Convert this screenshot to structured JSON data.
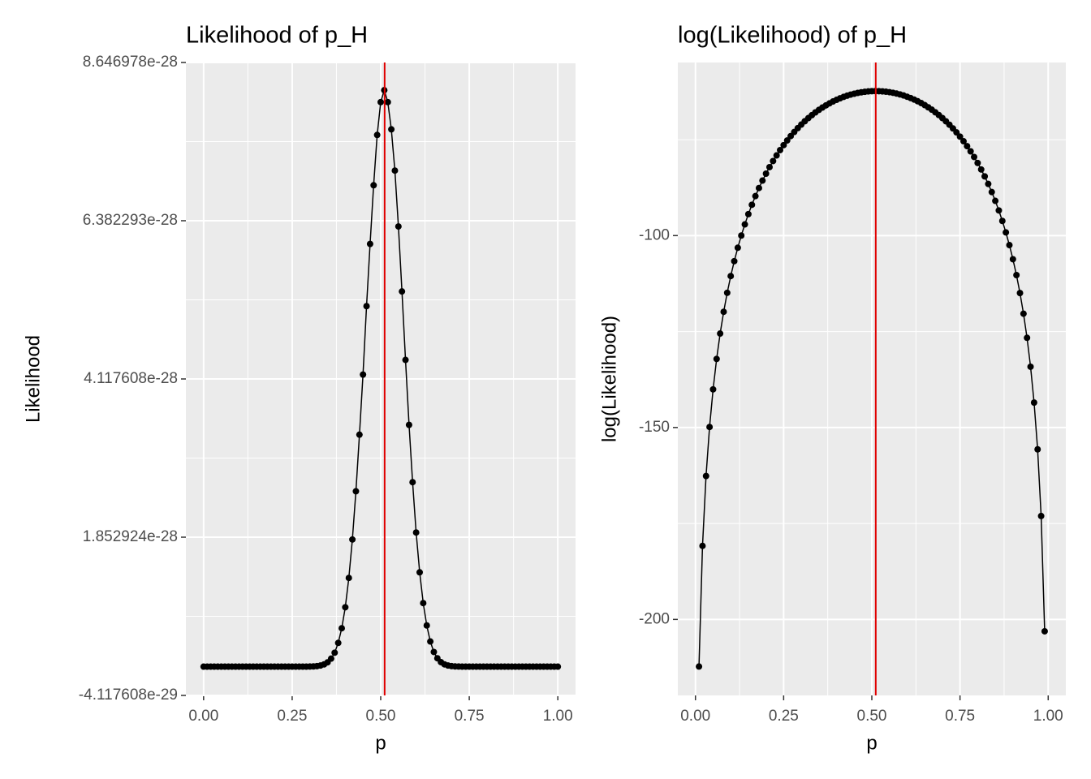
{
  "chart_data": [
    {
      "type": "line",
      "title": "Likelihood of p_H",
      "x_label": "p",
      "y_label": "Likelihood",
      "x": [
        0,
        0.01,
        0.02,
        0.03,
        0.04,
        0.05,
        0.06,
        0.07,
        0.08,
        0.09,
        0.1,
        0.11,
        0.12,
        0.13,
        0.14,
        0.15,
        0.16,
        0.17,
        0.18,
        0.19,
        0.2,
        0.21,
        0.22,
        0.23,
        0.24,
        0.25,
        0.26,
        0.27,
        0.28,
        0.29,
        0.3,
        0.31,
        0.32,
        0.33,
        0.34,
        0.35,
        0.36,
        0.37,
        0.38,
        0.39,
        0.4,
        0.41,
        0.42,
        0.43,
        0.44,
        0.45,
        0.46,
        0.47,
        0.48,
        0.49,
        0.5,
        0.51,
        0.52,
        0.53,
        0.54,
        0.55,
        0.56,
        0.57,
        0.58,
        0.59,
        0.6,
        0.61,
        0.62,
        0.63,
        0.64,
        0.65,
        0.66,
        0.67,
        0.68,
        0.69,
        0.7,
        0.71,
        0.72,
        0.73,
        0.74,
        0.75,
        0.76,
        0.77,
        0.78,
        0.79,
        0.8,
        0.81,
        0.82,
        0.83,
        0.84,
        0.85,
        0.86,
        0.87,
        0.88,
        0.89,
        0.9,
        0.91,
        0.92,
        0.93,
        0.94,
        0.95,
        0.96,
        0.97,
        0.98,
        0.99,
        1
      ],
      "values": [
        0,
        6.5e-93,
        2.9e-79,
        2.3e-71,
        8.1e-66,
        1.5e-61,
        4.1e-58,
        3.1e-55,
        8.9e-53,
        1.3e-50,
        9.8e-49,
        4.8e-47,
        1.6e-45,
        3.8e-44,
        6.9e-43,
        1e-41,
        1.1e-40,
        1.1e-39,
        8.9e-39,
        6.2e-38,
        3.8e-37,
        2.1e-36,
        1e-35,
        4.4e-35,
        1.8e-34,
        6.4e-34,
        2.2e-33,
        6.7e-33,
        1.9e-32,
        5.3e-32,
        1.35e-31,
        3.3e-31,
        7.3e-31,
        1.6e-30,
        3.2e-30,
        6.2e-30,
        1.15e-29,
        2e-29,
        3.4e-29,
        5.5e-29,
        8.5e-29,
        1.27e-28,
        1.82e-28,
        2.51e-28,
        3.32e-28,
        4.18e-28,
        5.16e-28,
        6.05e-28,
        6.89e-28,
        7.61e-28,
        8.08e-28,
        8.25e-28,
        8.08e-28,
        7.69e-28,
        7.1e-28,
        6.3e-28,
        5.37e-28,
        4.39e-28,
        3.46e-28,
        2.64e-28,
        1.92e-28,
        1.35e-28,
        9.1e-29,
        5.9e-29,
        3.6e-29,
        2.1e-29,
        1.2e-29,
        6.5e-30,
        3.3e-30,
        1.6e-30,
        7.4e-31,
        3.2e-31,
        1.3e-31,
        4.9e-32,
        1.7e-32,
        5.8e-33,
        1.8e-33,
        4.9e-34,
        1.3e-34,
        2.9e-35,
        6.2e-36,
        1.1e-36,
        1.9e-37,
        2.6e-38,
        3.2e-39,
        3.2e-40,
        2.6e-41,
        1.7e-42,
        8.5e-44,
        3.1e-45,
        7.9e-47,
        1.3e-48,
        1.2e-50,
        5.4e-53,
        1e-55,
        5.4e-59,
        4.7e-63,
        2.5e-68,
        6.9e-76,
        6.3e-89,
        0
      ],
      "color": "#000000",
      "vline": {
        "x": 0.5111,
        "color": "#e00000"
      },
      "xlim": [
        -0.05,
        1.05
      ],
      "xticks": [
        {
          "value": 0,
          "label": "0.00"
        },
        {
          "value": 0.25,
          "label": "0.25"
        },
        {
          "value": 0.5,
          "label": "0.50"
        },
        {
          "value": 0.75,
          "label": "0.75"
        },
        {
          "value": 1,
          "label": "1.00"
        }
      ],
      "ylim": [
        -4.117608e-29,
        8.646978e-28
      ],
      "yticks": [
        -4.117608e-29,
        1.852924e-28,
        4.117608e-28,
        6.382293e-28,
        8.646978e-28
      ],
      "grid": true
    },
    {
      "type": "line",
      "title": "log(Likelihood) of p_H",
      "x_label": "p",
      "y_label": "log(Likelihood)",
      "x": [
        0,
        0.01,
        0.02,
        0.03,
        0.04,
        0.05,
        0.06,
        0.07,
        0.08,
        0.09,
        0.1,
        0.11,
        0.12,
        0.13,
        0.14,
        0.15,
        0.16,
        0.17,
        0.18,
        0.19,
        0.2,
        0.21,
        0.22,
        0.23,
        0.24,
        0.25,
        0.26,
        0.27,
        0.28,
        0.29,
        0.3,
        0.31,
        0.32,
        0.33,
        0.34,
        0.35,
        0.36,
        0.37,
        0.38,
        0.39,
        0.4,
        0.41,
        0.42,
        0.43,
        0.44,
        0.45,
        0.46,
        0.47,
        0.48,
        0.49,
        0.5,
        0.51,
        0.52,
        0.53,
        0.54,
        0.55,
        0.56,
        0.57,
        0.58,
        0.59,
        0.6,
        0.61,
        0.62,
        0.63,
        0.64,
        0.65,
        0.66,
        0.67,
        0.68,
        0.69,
        0.7,
        0.71,
        0.72,
        0.73,
        0.74,
        0.75,
        0.76,
        0.77,
        0.78,
        0.79,
        0.8,
        0.81,
        0.82,
        0.83,
        0.84,
        0.85,
        0.86,
        0.87,
        0.88,
        0.89,
        0.9,
        0.91,
        0.92,
        0.93,
        0.94,
        0.95,
        0.96,
        0.97,
        0.98,
        0.99,
        1
      ],
      "values": [
        null,
        -212.28,
        -180.84,
        -162.64,
        -149.87,
        -140.06,
        -132.14,
        -125.52,
        -119.85,
        -114.91,
        -110.55,
        -106.66,
        -103.16,
        -99.98,
        -97.08,
        -94.41,
        -91.97,
        -89.71,
        -87.61,
        -85.67,
        -83.86,
        -82.16,
        -80.58,
        -79.11,
        -77.72,
        -76.43,
        -75.21,
        -74.08,
        -73.01,
        -72.01,
        -71.08,
        -70.2,
        -69.39,
        -68.62,
        -67.9,
        -67.25,
        -66.63,
        -66.07,
        -65.54,
        -65.06,
        -64.63,
        -64.23,
        -63.87,
        -63.55,
        -63.27,
        -63.04,
        -62.83,
        -62.67,
        -62.54,
        -62.44,
        -62.38,
        -62.36,
        -62.38,
        -62.43,
        -62.51,
        -62.63,
        -62.79,
        -62.99,
        -63.23,
        -63.5,
        -63.82,
        -64.17,
        -64.56,
        -65.0,
        -65.48,
        -66.01,
        -66.58,
        -67.2,
        -67.88,
        -68.6,
        -69.38,
        -70.22,
        -71.12,
        -72.09,
        -73.12,
        -74.23,
        -75.42,
        -76.69,
        -78.05,
        -79.52,
        -81.08,
        -82.77,
        -84.58,
        -86.54,
        -88.65,
        -90.95,
        -93.45,
        -96.18,
        -99.17,
        -102.48,
        -106.16,
        -110.29,
        -114.97,
        -120.35,
        -126.63,
        -134.17,
        -143.51,
        -155.69,
        -173.06,
        -203.09,
        null
      ],
      "color": "#000000",
      "vline": {
        "x": 0.5111,
        "color": "#e00000"
      },
      "xlim": [
        -0.05,
        1.05
      ],
      "xticks": [
        {
          "value": 0,
          "label": "0.00"
        },
        {
          "value": 0.25,
          "label": "0.25"
        },
        {
          "value": 0.5,
          "label": "0.50"
        },
        {
          "value": 0.75,
          "label": "0.75"
        },
        {
          "value": 1,
          "label": "1.00"
        }
      ],
      "ylim": [
        -219.8,
        -54.9
      ],
      "yticks": [
        -200,
        -150,
        -100
      ],
      "grid": true
    }
  ]
}
